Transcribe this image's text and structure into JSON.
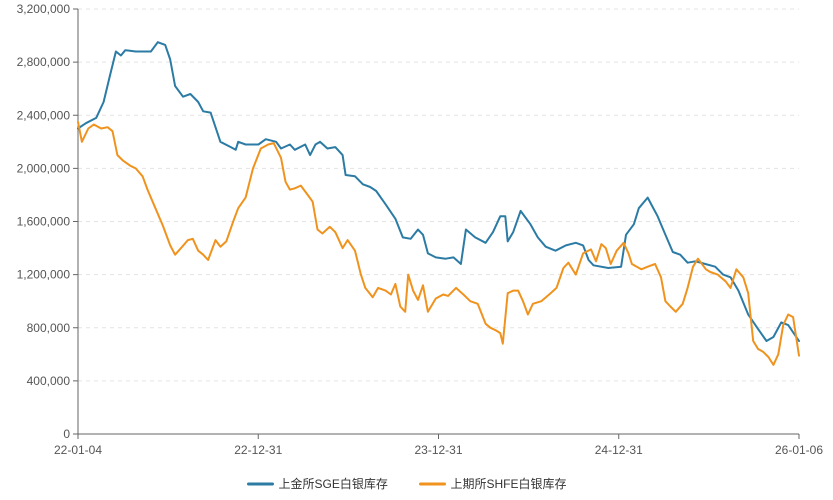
{
  "chart_data": {
    "type": "line",
    "title": "",
    "xlabel": "",
    "ylabel": "",
    "ylim": [
      0,
      3200000
    ],
    "y_ticks": [
      0,
      400000,
      800000,
      1200000,
      1600000,
      2000000,
      2400000,
      2800000,
      3200000
    ],
    "y_tick_labels": [
      "0",
      "400,000",
      "800,000",
      "1,200,000",
      "1,600,000",
      "2,000,000",
      "2,400,000",
      "2,800,000",
      "3,200,000"
    ],
    "x_ticks": [
      "22-01-04",
      "22-12-31",
      "23-12-31",
      "24-12-31",
      "26-01-06"
    ],
    "x_range": [
      "2022-01-04",
      "2026-01-06"
    ],
    "grid": "horizontal-dashed",
    "legend_position": "bottom-center",
    "series": [
      {
        "name": "上金所SGE白银库存",
        "color": "#2b7ba4",
        "points": [
          [
            "2022-01-04",
            2300000
          ],
          [
            "2022-01-20",
            2340000
          ],
          [
            "2022-02-10",
            2380000
          ],
          [
            "2022-02-25",
            2500000
          ],
          [
            "2022-03-10",
            2700000
          ],
          [
            "2022-03-22",
            2880000
          ],
          [
            "2022-04-01",
            2850000
          ],
          [
            "2022-04-10",
            2890000
          ],
          [
            "2022-05-01",
            2880000
          ],
          [
            "2022-06-01",
            2880000
          ],
          [
            "2022-06-15",
            2950000
          ],
          [
            "2022-06-30",
            2930000
          ],
          [
            "2022-07-10",
            2820000
          ],
          [
            "2022-07-20",
            2620000
          ],
          [
            "2022-08-05",
            2540000
          ],
          [
            "2022-08-20",
            2560000
          ],
          [
            "2022-09-05",
            2500000
          ],
          [
            "2022-09-15",
            2430000
          ],
          [
            "2022-09-30",
            2420000
          ],
          [
            "2022-10-20",
            2200000
          ],
          [
            "2022-11-10",
            2160000
          ],
          [
            "2022-11-20",
            2140000
          ],
          [
            "2022-11-25",
            2200000
          ],
          [
            "2022-12-10",
            2180000
          ],
          [
            "2023-01-05",
            2180000
          ],
          [
            "2023-01-20",
            2220000
          ],
          [
            "2023-02-10",
            2200000
          ],
          [
            "2023-02-20",
            2150000
          ],
          [
            "2023-03-10",
            2180000
          ],
          [
            "2023-03-20",
            2140000
          ],
          [
            "2023-04-10",
            2180000
          ],
          [
            "2023-04-20",
            2100000
          ],
          [
            "2023-05-01",
            2180000
          ],
          [
            "2023-05-10",
            2200000
          ],
          [
            "2023-05-25",
            2150000
          ],
          [
            "2023-06-10",
            2160000
          ],
          [
            "2023-06-25",
            2100000
          ],
          [
            "2023-07-01",
            1950000
          ],
          [
            "2023-07-20",
            1940000
          ],
          [
            "2023-08-05",
            1880000
          ],
          [
            "2023-08-20",
            1860000
          ],
          [
            "2023-09-01",
            1830000
          ],
          [
            "2023-09-20",
            1730000
          ],
          [
            "2023-10-10",
            1620000
          ],
          [
            "2023-10-25",
            1480000
          ],
          [
            "2023-11-10",
            1470000
          ],
          [
            "2023-11-25",
            1540000
          ],
          [
            "2023-12-05",
            1500000
          ],
          [
            "2023-12-15",
            1360000
          ],
          [
            "2023-12-31",
            1330000
          ],
          [
            "2024-01-20",
            1320000
          ],
          [
            "2024-02-05",
            1330000
          ],
          [
            "2024-02-20",
            1280000
          ],
          [
            "2024-03-01",
            1540000
          ],
          [
            "2024-03-20",
            1480000
          ],
          [
            "2024-04-10",
            1440000
          ],
          [
            "2024-04-25",
            1520000
          ],
          [
            "2024-05-10",
            1640000
          ],
          [
            "2024-05-20",
            1640000
          ],
          [
            "2024-05-25",
            1450000
          ],
          [
            "2024-06-05",
            1520000
          ],
          [
            "2024-06-20",
            1680000
          ],
          [
            "2024-07-10",
            1580000
          ],
          [
            "2024-07-25",
            1480000
          ],
          [
            "2024-08-10",
            1410000
          ],
          [
            "2024-08-30",
            1380000
          ],
          [
            "2024-09-20",
            1420000
          ],
          [
            "2024-10-10",
            1440000
          ],
          [
            "2024-10-25",
            1420000
          ],
          [
            "2024-11-05",
            1310000
          ],
          [
            "2024-11-15",
            1270000
          ],
          [
            "2024-12-15",
            1250000
          ],
          [
            "2025-01-10",
            1260000
          ],
          [
            "2025-01-20",
            1500000
          ],
          [
            "2025-02-05",
            1580000
          ],
          [
            "2025-02-15",
            1700000
          ],
          [
            "2025-03-05",
            1780000
          ],
          [
            "2025-03-15",
            1710000
          ],
          [
            "2025-03-25",
            1640000
          ],
          [
            "2025-04-10",
            1500000
          ],
          [
            "2025-04-25",
            1370000
          ],
          [
            "2025-05-10",
            1350000
          ],
          [
            "2025-05-25",
            1290000
          ],
          [
            "2025-06-10",
            1300000
          ],
          [
            "2025-06-30",
            1280000
          ],
          [
            "2025-07-20",
            1260000
          ],
          [
            "2025-08-05",
            1200000
          ],
          [
            "2025-08-20",
            1180000
          ],
          [
            "2025-09-05",
            1080000
          ],
          [
            "2025-09-25",
            900000
          ],
          [
            "2025-10-15",
            790000
          ],
          [
            "2025-11-01",
            700000
          ],
          [
            "2025-11-15",
            730000
          ],
          [
            "2025-12-01",
            840000
          ],
          [
            "2025-12-15",
            820000
          ],
          [
            "2026-01-06",
            700000
          ]
        ]
      },
      {
        "name": "上期所SHFE白银库存",
        "color": "#f0931e",
        "points": [
          [
            "2022-01-04",
            2350000
          ],
          [
            "2022-01-12",
            2200000
          ],
          [
            "2022-01-25",
            2300000
          ],
          [
            "2022-02-05",
            2330000
          ],
          [
            "2022-02-20",
            2300000
          ],
          [
            "2022-03-05",
            2310000
          ],
          [
            "2022-03-15",
            2280000
          ],
          [
            "2022-03-25",
            2100000
          ],
          [
            "2022-04-05",
            2060000
          ],
          [
            "2022-04-20",
            2020000
          ],
          [
            "2022-05-01",
            2000000
          ],
          [
            "2022-05-15",
            1940000
          ],
          [
            "2022-05-25",
            1840000
          ],
          [
            "2022-06-10",
            1700000
          ],
          [
            "2022-06-25",
            1570000
          ],
          [
            "2022-07-10",
            1420000
          ],
          [
            "2022-07-20",
            1350000
          ],
          [
            "2022-08-01",
            1400000
          ],
          [
            "2022-08-15",
            1460000
          ],
          [
            "2022-08-25",
            1470000
          ],
          [
            "2022-09-05",
            1380000
          ],
          [
            "2022-09-15",
            1350000
          ],
          [
            "2022-09-25",
            1310000
          ],
          [
            "2022-10-10",
            1460000
          ],
          [
            "2022-10-20",
            1410000
          ],
          [
            "2022-11-01",
            1450000
          ],
          [
            "2022-11-15",
            1600000
          ],
          [
            "2022-11-25",
            1700000
          ],
          [
            "2022-12-10",
            1780000
          ],
          [
            "2022-12-25",
            2000000
          ],
          [
            "2023-01-10",
            2150000
          ],
          [
            "2023-01-25",
            2180000
          ],
          [
            "2023-02-05",
            2190000
          ],
          [
            "2023-02-20",
            2080000
          ],
          [
            "2023-03-01",
            1900000
          ],
          [
            "2023-03-10",
            1840000
          ],
          [
            "2023-03-20",
            1850000
          ],
          [
            "2023-04-01",
            1870000
          ],
          [
            "2023-04-15",
            1800000
          ],
          [
            "2023-04-25",
            1750000
          ],
          [
            "2023-05-05",
            1540000
          ],
          [
            "2023-05-15",
            1510000
          ],
          [
            "2023-05-30",
            1560000
          ],
          [
            "2023-06-10",
            1520000
          ],
          [
            "2023-06-25",
            1400000
          ],
          [
            "2023-07-05",
            1460000
          ],
          [
            "2023-07-20",
            1380000
          ],
          [
            "2023-08-01",
            1200000
          ],
          [
            "2023-08-10",
            1100000
          ],
          [
            "2023-08-25",
            1030000
          ],
          [
            "2023-09-05",
            1100000
          ],
          [
            "2023-09-20",
            1080000
          ],
          [
            "2023-10-01",
            1050000
          ],
          [
            "2023-10-10",
            1130000
          ],
          [
            "2023-10-20",
            960000
          ],
          [
            "2023-10-30",
            920000
          ],
          [
            "2023-11-05",
            1200000
          ],
          [
            "2023-11-15",
            1080000
          ],
          [
            "2023-11-25",
            1010000
          ],
          [
            "2023-12-05",
            1120000
          ],
          [
            "2023-12-15",
            920000
          ],
          [
            "2023-12-31",
            1020000
          ],
          [
            "2024-01-15",
            1050000
          ],
          [
            "2024-01-25",
            1040000
          ],
          [
            "2024-02-10",
            1100000
          ],
          [
            "2024-02-25",
            1050000
          ],
          [
            "2024-03-10",
            1000000
          ],
          [
            "2024-03-25",
            980000
          ],
          [
            "2024-04-10",
            830000
          ],
          [
            "2024-04-20",
            800000
          ],
          [
            "2024-05-01",
            780000
          ],
          [
            "2024-05-10",
            760000
          ],
          [
            "2024-05-15",
            680000
          ],
          [
            "2024-05-25",
            1060000
          ],
          [
            "2024-06-05",
            1080000
          ],
          [
            "2024-06-15",
            1080000
          ],
          [
            "2024-06-25",
            1000000
          ],
          [
            "2024-07-05",
            900000
          ],
          [
            "2024-07-15",
            980000
          ],
          [
            "2024-08-01",
            1000000
          ],
          [
            "2024-08-20",
            1060000
          ],
          [
            "2024-09-01",
            1100000
          ],
          [
            "2024-09-15",
            1250000
          ],
          [
            "2024-09-25",
            1290000
          ],
          [
            "2024-10-10",
            1200000
          ],
          [
            "2024-10-25",
            1360000
          ],
          [
            "2024-11-10",
            1390000
          ],
          [
            "2024-11-20",
            1300000
          ],
          [
            "2024-12-01",
            1430000
          ],
          [
            "2024-12-10",
            1400000
          ],
          [
            "2024-12-20",
            1280000
          ],
          [
            "2025-01-01",
            1380000
          ],
          [
            "2025-01-15",
            1440000
          ],
          [
            "2025-01-25",
            1360000
          ],
          [
            "2025-02-01",
            1280000
          ],
          [
            "2025-02-20",
            1240000
          ],
          [
            "2025-03-05",
            1260000
          ],
          [
            "2025-03-20",
            1280000
          ],
          [
            "2025-04-01",
            1180000
          ],
          [
            "2025-04-10",
            1000000
          ],
          [
            "2025-04-20",
            960000
          ],
          [
            "2025-05-01",
            920000
          ],
          [
            "2025-05-15",
            980000
          ],
          [
            "2025-05-25",
            1100000
          ],
          [
            "2025-06-05",
            1260000
          ],
          [
            "2025-06-15",
            1320000
          ],
          [
            "2025-07-01",
            1240000
          ],
          [
            "2025-07-10",
            1220000
          ],
          [
            "2025-07-25",
            1200000
          ],
          [
            "2025-08-10",
            1150000
          ],
          [
            "2025-08-20",
            1100000
          ],
          [
            "2025-09-01",
            1240000
          ],
          [
            "2025-09-15",
            1180000
          ],
          [
            "2025-09-25",
            1060000
          ],
          [
            "2025-10-05",
            700000
          ],
          [
            "2025-10-15",
            640000
          ],
          [
            "2025-10-25",
            620000
          ],
          [
            "2025-11-05",
            580000
          ],
          [
            "2025-11-15",
            520000
          ],
          [
            "2025-11-25",
            600000
          ],
          [
            "2025-12-05",
            820000
          ],
          [
            "2025-12-15",
            900000
          ],
          [
            "2025-12-25",
            880000
          ],
          [
            "2026-01-06",
            590000
          ]
        ]
      }
    ]
  }
}
